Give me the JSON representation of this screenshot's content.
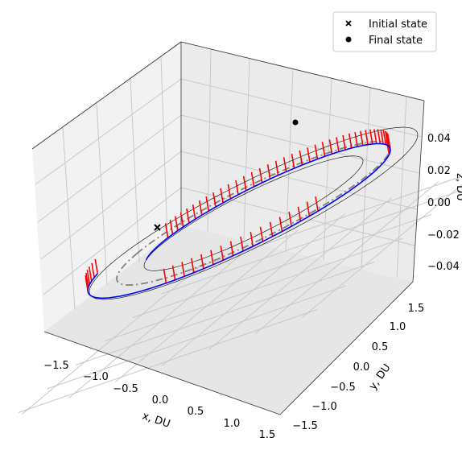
{
  "chart_data": {
    "type": "scatter",
    "projection": "3d",
    "xlabel": "x, DU",
    "ylabel": "y, DU",
    "zlabel": "z, DU",
    "xlim": [
      -1.6,
      1.6
    ],
    "ylim": [
      -1.6,
      1.6
    ],
    "zlim": [
      -0.055,
      0.055
    ],
    "xticks": [
      "−1.5",
      "−1.0",
      "−0.5",
      "0.0",
      "0.5",
      "1.0",
      "1.5"
    ],
    "yticks": [
      "−1.5",
      "−1.0",
      "−0.5",
      "0.0",
      "0.5",
      "1.0",
      "1.5"
    ],
    "zticks": [
      "−0.04",
      "−0.02",
      "0.00",
      "0.02",
      "0.04"
    ],
    "grid": true,
    "legend_position": "top-right",
    "legend": [
      {
        "label": "Initial state",
        "marker": "x"
      },
      {
        "label": "Final state",
        "marker": "o"
      }
    ],
    "series": [
      {
        "style": "solid-thin",
        "color": "#000000",
        "radius": 1.0,
        "z": 0
      },
      {
        "style": "dashdot",
        "color": "#808080",
        "radius": 1.25,
        "z": 0
      },
      {
        "style": "solid-thin",
        "color": "#000000",
        "radius": 1.5,
        "z": 0
      },
      {
        "style": "trajectory",
        "color": "#0000ff"
      },
      {
        "style": "thrust",
        "color": "#ff0000"
      }
    ],
    "initial_state": {
      "x": 0.95,
      "y": -0.3,
      "z": 0
    },
    "final_state": {
      "x": -0.05,
      "y": 1.55,
      "z": 0
    }
  }
}
